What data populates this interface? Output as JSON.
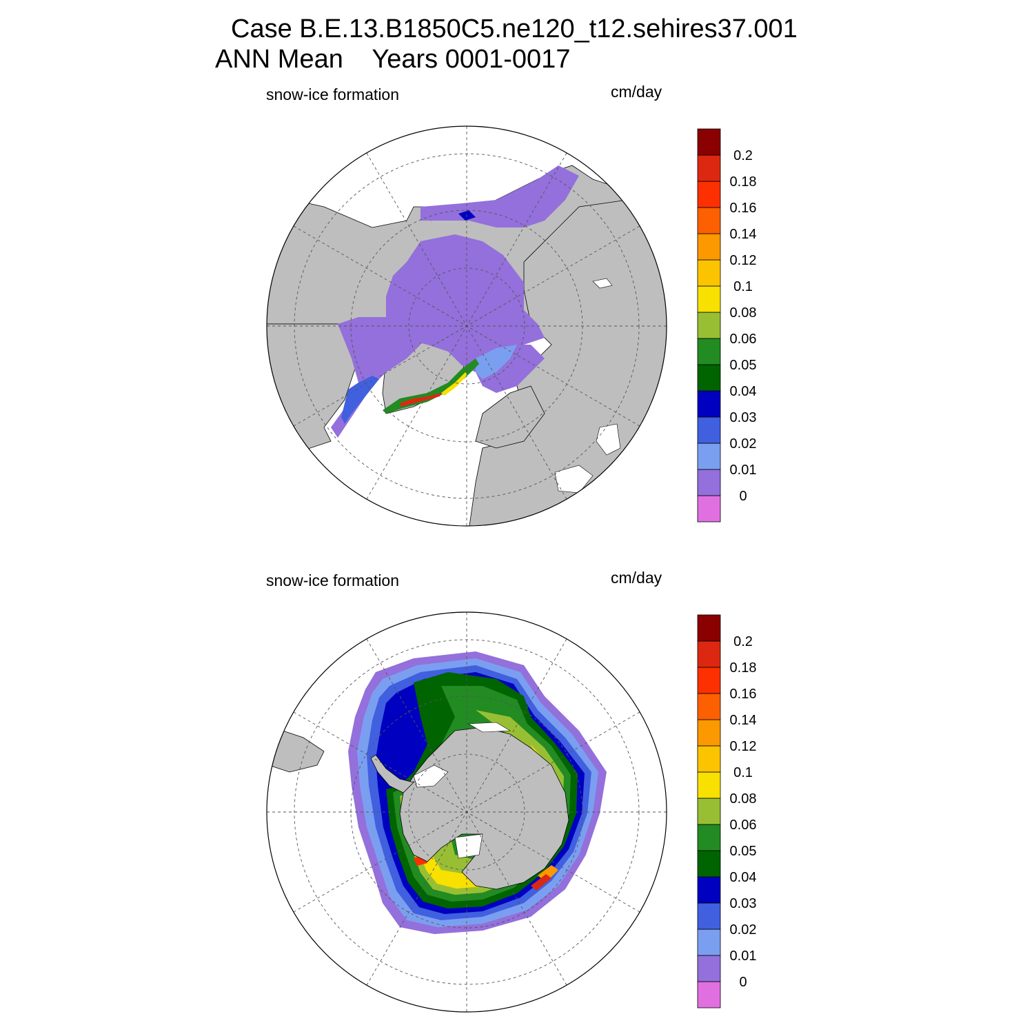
{
  "header": {
    "title_line1": "Case B.E.13.B1850C5.ne120_t12.sehires37.001",
    "title_line2": "ANN Mean    Years 0001-0017"
  },
  "panels": [
    {
      "variable": "snow-ice formation",
      "units": "cm/day"
    },
    {
      "variable": "snow-ice formation",
      "units": "cm/day"
    }
  ],
  "colorbar": {
    "colors": [
      "#e070e0",
      "#9370db",
      "#7b9ff0",
      "#4060e0",
      "#0000c0",
      "#006400",
      "#228b22",
      "#98bf34",
      "#f8e000",
      "#fcc400",
      "#fc9800",
      "#fc6000",
      "#fc3000",
      "#dc2810",
      "#8b0000"
    ],
    "labels": [
      "0",
      "0.01",
      "0.02",
      "0.03",
      "0.04",
      "0.05",
      "0.06",
      "0.08",
      "0.1",
      "0.12",
      "0.14",
      "0.16",
      "0.18",
      "0.2"
    ]
  },
  "style": {
    "land": "#bebebe",
    "ocean": "#ffffff"
  }
}
